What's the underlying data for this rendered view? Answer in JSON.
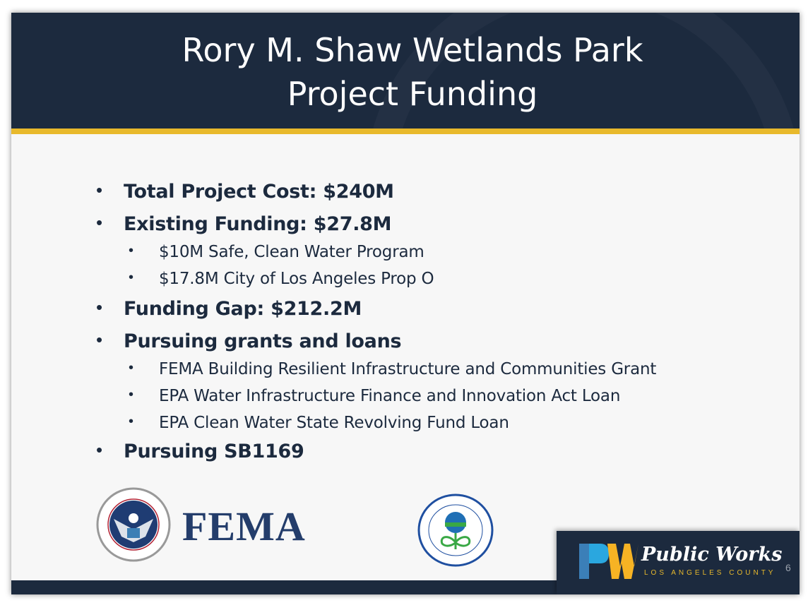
{
  "title": {
    "line1": "Rory M. Shaw Wetlands Park",
    "line2": "Project Funding"
  },
  "bullets": [
    {
      "level": 1,
      "text": "Total Project Cost: $240M"
    },
    {
      "level": 1,
      "text": "Existing Funding: $27.8M"
    },
    {
      "level": 2,
      "text": "$10M Safe, Clean Water Program"
    },
    {
      "level": 2,
      "text": "$17.8M City of Los Angeles Prop O"
    },
    {
      "level": 1,
      "text": "Funding Gap: $212.2M"
    },
    {
      "level": 1,
      "text": "Pursuing grants and loans"
    },
    {
      "level": 2,
      "text": "FEMA Building Resilient Infrastructure and Communities Grant"
    },
    {
      "level": 2,
      "text": "EPA Water Infrastructure Finance and Innovation Act Loan"
    },
    {
      "level": 2,
      "text": "EPA Clean Water State Revolving Fund Loan"
    },
    {
      "level": 1,
      "text": "Pursuing SB1169"
    }
  ],
  "logos": {
    "dhs_seal": "U.S. Department of Homeland Security",
    "fema": "FEMA",
    "epa_seal": "United States Environmental Protection Agency",
    "public_works": "Public Works",
    "public_works_sub": "LOS ANGELES COUNTY"
  },
  "page_number": "6",
  "colors": {
    "navy": "#1c2a3e",
    "gold": "#e8b92c",
    "fema_blue": "#243d6b"
  }
}
